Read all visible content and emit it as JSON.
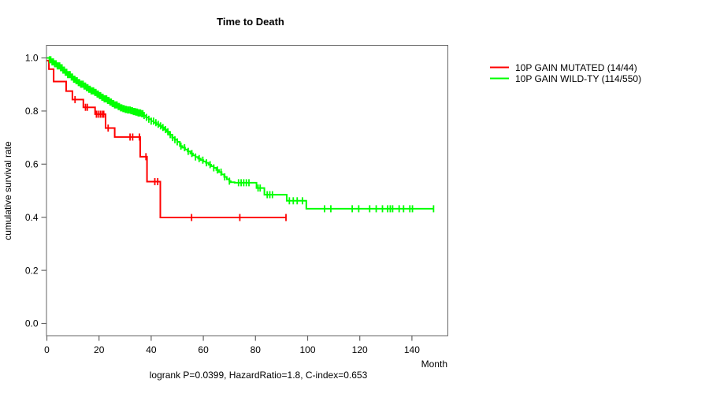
{
  "chart_data": {
    "type": "line",
    "subtype": "kaplan-meier-survival-step",
    "title": "Time to Death",
    "xlabel": "Month",
    "ylabel": "cumulative survival rate",
    "footnote": "logrank P=0.0399, HazardRatio=1.8, C-index=0.653",
    "x_ticks": [
      0,
      20,
      40,
      60,
      80,
      100,
      120,
      140
    ],
    "y_ticks": [
      "0.0",
      "0.2",
      "0.4",
      "0.6",
      "0.8",
      "1.0"
    ],
    "xlim": [
      0,
      154
    ],
    "ylim": [
      0.0,
      1.0
    ],
    "grid": false,
    "legend_position": "outside-top-right",
    "axis_color": "#666666",
    "text_color": "#000000",
    "series": [
      {
        "name": "10P GAIN MUTATED (14/44)",
        "color": "#ff0000",
        "end_month": 91.7,
        "points": [
          [
            0,
            0.99
          ],
          [
            0.8,
            0.958
          ],
          [
            2.6,
            0.911
          ],
          [
            7.4,
            0.875
          ],
          [
            9.8,
            0.843
          ],
          [
            14,
            0.814
          ],
          [
            18.5,
            0.788
          ],
          [
            22.5,
            0.736
          ],
          [
            26,
            0.702
          ],
          [
            35.8,
            0.628
          ],
          [
            38.4,
            0.534
          ],
          [
            43.5,
            0.399
          ]
        ],
        "censor_months": [
          10.8,
          14.8,
          15.5,
          19,
          19.7,
          20.5,
          21.2,
          21.8,
          23.5,
          31.9,
          32.9,
          35.5,
          38,
          41.4,
          42.5,
          55.5,
          74,
          91.7
        ]
      },
      {
        "name": "10P GAIN WILD-TY (114/550)",
        "color": "#00ff00",
        "end_month": 148.3,
        "points": [
          [
            0,
            1.0
          ],
          [
            1,
            0.993
          ],
          [
            2,
            0.985
          ],
          [
            3,
            0.978
          ],
          [
            4,
            0.97
          ],
          [
            5,
            0.963
          ],
          [
            6,
            0.954
          ],
          [
            7,
            0.946
          ],
          [
            8,
            0.937
          ],
          [
            9,
            0.928
          ],
          [
            10,
            0.92
          ],
          [
            11,
            0.914
          ],
          [
            12,
            0.907
          ],
          [
            13,
            0.901
          ],
          [
            14,
            0.894
          ],
          [
            15,
            0.888
          ],
          [
            16,
            0.882
          ],
          [
            17,
            0.876
          ],
          [
            18,
            0.87
          ],
          [
            19,
            0.864
          ],
          [
            20,
            0.858
          ],
          [
            21,
            0.852
          ],
          [
            22,
            0.846
          ],
          [
            23,
            0.84
          ],
          [
            24,
            0.834
          ],
          [
            25,
            0.828
          ],
          [
            26,
            0.823
          ],
          [
            27,
            0.817
          ],
          [
            28,
            0.812
          ],
          [
            29,
            0.809
          ],
          [
            30,
            0.806
          ],
          [
            31,
            0.804
          ],
          [
            32,
            0.801
          ],
          [
            33,
            0.798
          ],
          [
            34,
            0.796
          ],
          [
            35,
            0.793
          ],
          [
            36,
            0.79
          ],
          [
            37,
            0.783
          ],
          [
            38,
            0.776
          ],
          [
            39,
            0.769
          ],
          [
            40,
            0.762
          ],
          [
            41,
            0.756
          ],
          [
            42,
            0.75
          ],
          [
            43,
            0.744
          ],
          [
            44,
            0.738
          ],
          [
            45,
            0.73
          ],
          [
            46,
            0.722
          ],
          [
            47,
            0.711
          ],
          [
            48,
            0.7
          ],
          [
            49,
            0.692
          ],
          [
            50,
            0.684
          ],
          [
            51,
            0.668
          ],
          [
            52,
            0.662
          ],
          [
            53,
            0.655
          ],
          [
            54,
            0.648
          ],
          [
            55,
            0.64
          ],
          [
            56,
            0.633
          ],
          [
            57,
            0.627
          ],
          [
            58,
            0.621
          ],
          [
            59,
            0.615
          ],
          [
            60,
            0.61
          ],
          [
            61,
            0.605
          ],
          [
            62,
            0.598
          ],
          [
            63,
            0.592
          ],
          [
            64,
            0.586
          ],
          [
            65,
            0.578
          ],
          [
            66,
            0.57
          ],
          [
            67,
            0.561
          ],
          [
            68,
            0.552
          ],
          [
            69,
            0.543
          ],
          [
            70,
            0.536
          ],
          [
            70.5,
            0.532
          ],
          [
            72,
            0.53
          ],
          [
            80.4,
            0.51
          ],
          [
            83.4,
            0.485
          ],
          [
            92,
            0.462
          ],
          [
            99.5,
            0.432
          ]
        ],
        "censor_months": [
          1,
          1.5,
          2,
          2.5,
          3,
          3.5,
          4,
          4.4,
          4.9,
          5.3,
          5.8,
          6.2,
          6.7,
          7.1,
          7.6,
          8,
          8.5,
          8.9,
          9.4,
          9.8,
          10.3,
          10.7,
          11.2,
          11.6,
          12.1,
          12.5,
          13,
          13.4,
          13.9,
          14.3,
          14.8,
          15.2,
          15.7,
          16.1,
          16.6,
          17,
          17.5,
          17.9,
          18.4,
          18.8,
          19.3,
          19.7,
          20.2,
          20.6,
          21.1,
          21.5,
          22,
          22.4,
          22.9,
          23.3,
          23.8,
          24.2,
          24.7,
          25.1,
          25.6,
          26,
          26.5,
          26.9,
          27.4,
          27.8,
          28.3,
          28.7,
          29.2,
          29.6,
          30.1,
          30.5,
          31,
          31.4,
          31.9,
          32.3,
          32.8,
          33.2,
          33.5,
          33.8,
          34.1,
          34.4,
          34.7,
          35,
          35.3,
          35.6,
          35.9,
          36.4,
          36.8,
          37.3,
          38.2,
          39.1,
          40,
          40.9,
          41.8,
          42.7,
          43.6,
          44.5,
          45.5,
          46.4,
          47.3,
          48.2,
          49.1,
          50,
          51.4,
          52.8,
          54.2,
          55.6,
          57,
          58.4,
          59.8,
          61.2,
          62.6,
          64,
          65.4,
          66.8,
          68.2,
          70,
          73.5,
          74.5,
          75.5,
          76.5,
          77.5,
          81,
          81.8,
          84.5,
          85.5,
          86.5,
          93,
          94.5,
          96,
          98,
          106.5,
          108.9,
          117.1,
          119.6,
          123.8,
          126.3,
          128.7,
          130.7,
          131.7,
          132.6,
          135.1,
          136.8,
          139.2,
          140.2,
          148.3
        ]
      }
    ]
  }
}
